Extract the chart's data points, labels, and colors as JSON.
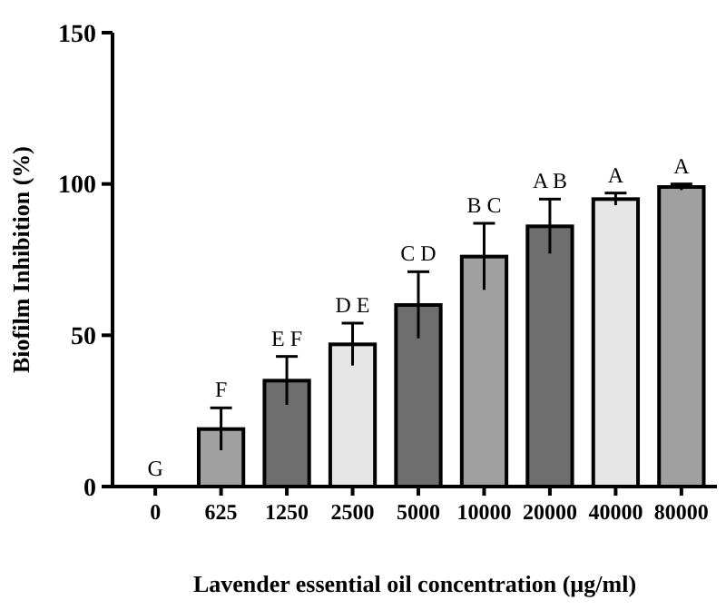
{
  "chart_data": {
    "type": "bar",
    "ylabel": "Biofilm Inhibition (%)",
    "xlabel": "Lavender essential oil concentration (µg/ml)",
    "categories": [
      "0",
      "625",
      "1250",
      "2500",
      "5000",
      "10000",
      "20000",
      "40000",
      "80000"
    ],
    "values": [
      0,
      19,
      35,
      47,
      60,
      76,
      86,
      95,
      99
    ],
    "errors": [
      null,
      7,
      8,
      7,
      11,
      11,
      9,
      2,
      1
    ],
    "colors": [
      "#a0a0a0",
      "#a0a0a0",
      "#6e6e6e",
      "#e6e6e6",
      "#6e6e6e",
      "#a0a0a0",
      "#6e6e6e",
      "#e6e6e6",
      "#a0a0a0"
    ],
    "ylim": [
      0,
      150
    ],
    "yticks": [
      0,
      50,
      100,
      150
    ],
    "grid": false,
    "annotations": [
      {
        "text": "G",
        "x": "0",
        "y": 0
      },
      {
        "text": "F",
        "x": "625",
        "y": 26
      },
      {
        "text": "E F",
        "x": "1250",
        "y": 43
      },
      {
        "text": "D E",
        "x": "2500",
        "y": 54
      },
      {
        "text": "C D",
        "x": "5000",
        "y": 71
      },
      {
        "text": "B C",
        "x": "10000",
        "y": 87
      },
      {
        "text": "A B",
        "x": "20000",
        "y": 95
      },
      {
        "text": "A",
        "x": "40000",
        "y": 97
      },
      {
        "text": "A",
        "x": "80000",
        "y": 100
      }
    ]
  }
}
